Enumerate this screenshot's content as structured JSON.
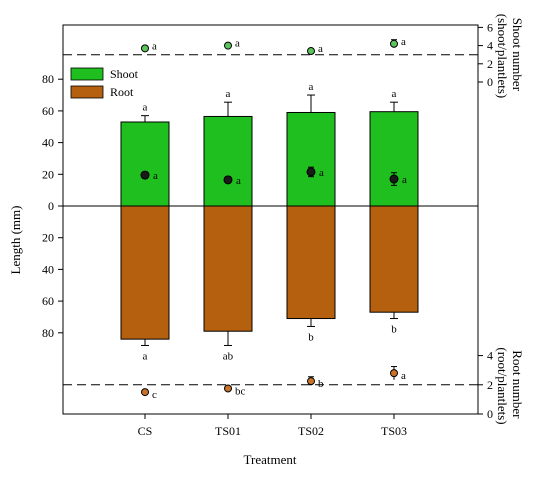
{
  "colors": {
    "shoot": "#1fbf1f",
    "root": "#b5600e",
    "shoot_marker": "#5cc45c",
    "root_marker": "#c9732a",
    "length_marker": "#1a1a1a"
  },
  "chart_data": {
    "type": "bar",
    "xlabel": "Treatment",
    "ylabel": "Length (mm)",
    "categories": [
      "CS",
      "TS01",
      "TS02",
      "TS03"
    ],
    "ylim": [
      -100,
      100
    ],
    "length_ticks": [
      {
        "label": "80",
        "value": 80
      },
      {
        "label": "60",
        "value": 60
      },
      {
        "label": "40",
        "value": 40
      },
      {
        "label": "20",
        "value": 20
      },
      {
        "label": "0",
        "value": 0
      },
      {
        "label": "20",
        "value": -20
      },
      {
        "label": "40",
        "value": -40
      },
      {
        "label": "60",
        "value": -60
      },
      {
        "label": "80",
        "value": -80
      }
    ],
    "legend": [
      {
        "name": "Shoot",
        "color": "#1fbf1f"
      },
      {
        "name": "Root",
        "color": "#b5600e"
      }
    ],
    "series": [
      {
        "name": "Shoot",
        "values": [
          53,
          56.5,
          59,
          59.5
        ],
        "errors": [
          4,
          9,
          11,
          6
        ],
        "letters": [
          "a",
          "a",
          "a",
          "a"
        ]
      },
      {
        "name": "Root",
        "values": [
          84,
          79,
          71,
          67
        ],
        "errors": [
          4,
          9,
          5,
          4
        ],
        "letters": [
          "a",
          "ab",
          "b",
          "b"
        ]
      }
    ],
    "overlay_length": {
      "values": [
        19.5,
        16.5,
        21.5,
        17
      ],
      "errors": [
        2,
        2,
        3,
        4
      ],
      "letters": [
        "a",
        "a",
        "a",
        "a"
      ]
    },
    "shoot_number": {
      "label_lines": [
        "Shoot number",
        "(shoot/plantlets)"
      ],
      "ticks": [
        0,
        2,
        4,
        6
      ],
      "reference_line": 3,
      "values": [
        3.7,
        4.0,
        3.4,
        4.2
      ],
      "errors": [
        0.15,
        0.15,
        0.2,
        0.45
      ],
      "letters": [
        "a",
        "a",
        "a",
        "a"
      ]
    },
    "root_number": {
      "label_lines": [
        "Root number",
        "(root/plantlets)"
      ],
      "ticks": [
        0,
        2,
        4
      ],
      "reference_line": 2,
      "values": [
        1.5,
        1.75,
        2.25,
        2.8
      ],
      "errors": [
        0.1,
        0.1,
        0.3,
        0.45
      ],
      "letters": [
        "c",
        "bc",
        "b",
        "a"
      ]
    }
  }
}
